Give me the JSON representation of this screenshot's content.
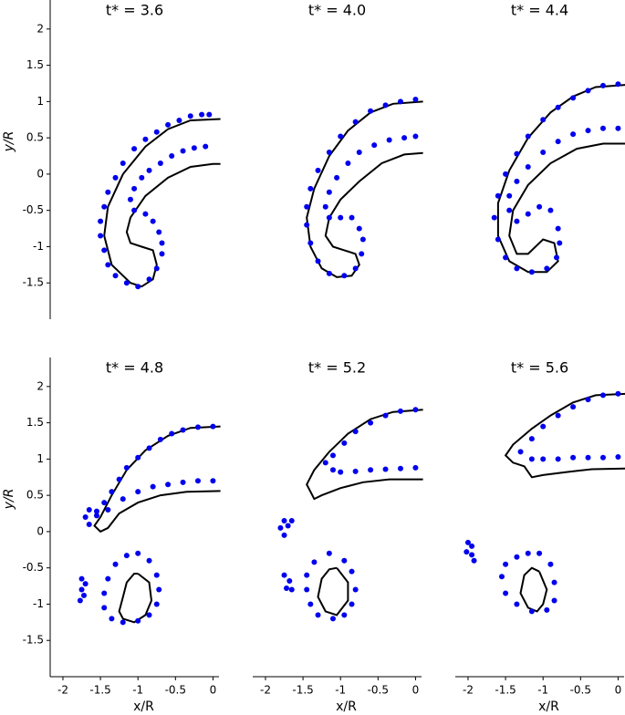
{
  "chart_data": [
    {
      "type": "scatter",
      "title": "t* = 3.6",
      "ylabel": "y/R",
      "xlim": [
        -2.17,
        0.08
      ],
      "ylim": [
        -2.0,
        2.4
      ],
      "yticks": [
        -1.5,
        -1,
        -0.5,
        0,
        0.5,
        1,
        1.5,
        2
      ],
      "series": [
        {
          "mode": "line",
          "color": "#000000",
          "x": [
            0.1,
            -0.3,
            -0.6,
            -0.9,
            -1.2,
            -1.4,
            -1.45,
            -1.35,
            -1.1,
            -0.95,
            -0.8,
            -0.75,
            -0.8,
            -0.95,
            -1.1,
            -1.15,
            -1.1,
            -0.9,
            -0.6,
            -0.3,
            0,
            0.1
          ],
          "y": [
            0.76,
            0.74,
            0.62,
            0.38,
            0.0,
            -0.45,
            -0.85,
            -1.25,
            -1.5,
            -1.55,
            -1.45,
            -1.25,
            -1.05,
            -1.0,
            -0.95,
            -0.8,
            -0.6,
            -0.3,
            -0.05,
            0.1,
            0.14,
            0.14
          ]
        },
        {
          "mode": "markers",
          "color": "#0000ee",
          "x": [
            -0.05,
            -0.15,
            -0.3,
            -0.45,
            -0.6,
            -0.75,
            -0.9,
            -1.05,
            -1.2,
            -1.3,
            -1.4,
            -1.45,
            -1.5,
            -1.5,
            -1.45,
            -1.4,
            -1.3,
            -1.15,
            -1.0,
            -0.85,
            -0.75,
            -0.68,
            -0.68,
            -0.72,
            -0.8,
            -0.9,
            -1.05,
            -1.1,
            -1.05,
            -0.95,
            -0.85,
            -0.7,
            -0.55,
            -0.4,
            -0.25,
            -0.1
          ],
          "y": [
            0.82,
            0.82,
            0.8,
            0.74,
            0.68,
            0.58,
            0.48,
            0.35,
            0.15,
            -0.05,
            -0.25,
            -0.45,
            -0.65,
            -0.85,
            -1.05,
            -1.25,
            -1.4,
            -1.5,
            -1.55,
            -1.45,
            -1.3,
            -1.1,
            -0.95,
            -0.8,
            -0.65,
            -0.55,
            -0.5,
            -0.35,
            -0.2,
            -0.05,
            0.05,
            0.15,
            0.25,
            0.32,
            0.36,
            0.38
          ]
        }
      ]
    },
    {
      "type": "scatter",
      "title": "t* = 4.0",
      "xlim": [
        -2.17,
        0.08
      ],
      "ylim": [
        -2.0,
        2.4
      ],
      "series": [
        {
          "mode": "line",
          "color": "#000000",
          "x": [
            0.1,
            -0.3,
            -0.6,
            -0.9,
            -1.15,
            -1.35,
            -1.45,
            -1.4,
            -1.25,
            -1.05,
            -0.85,
            -0.75,
            -0.8,
            -0.95,
            -1.1,
            -1.2,
            -1.15,
            -1.0,
            -0.75,
            -0.45,
            -0.15,
            0.1
          ],
          "y": [
            1.0,
            0.97,
            0.85,
            0.6,
            0.25,
            -0.2,
            -0.6,
            -1.0,
            -1.3,
            -1.42,
            -1.4,
            -1.25,
            -1.1,
            -1.05,
            -1.0,
            -0.85,
            -0.6,
            -0.35,
            -0.1,
            0.15,
            0.27,
            0.29
          ]
        },
        {
          "mode": "markers",
          "color": "#0000ee",
          "x": [
            0,
            -0.2,
            -0.4,
            -0.6,
            -0.8,
            -1.0,
            -1.15,
            -1.3,
            -1.4,
            -1.45,
            -1.45,
            -1.4,
            -1.3,
            -1.15,
            -0.95,
            -0.8,
            -0.72,
            -0.7,
            -0.75,
            -0.85,
            -1.0,
            -1.15,
            -1.2,
            -1.15,
            -1.05,
            -0.9,
            -0.75,
            -0.55,
            -0.35,
            -0.15,
            0
          ],
          "y": [
            1.03,
            1.0,
            0.95,
            0.87,
            0.72,
            0.52,
            0.3,
            0.05,
            -0.2,
            -0.45,
            -0.7,
            -0.95,
            -1.2,
            -1.37,
            -1.4,
            -1.3,
            -1.1,
            -0.9,
            -0.75,
            -0.6,
            -0.6,
            -0.6,
            -0.45,
            -0.25,
            -0.05,
            0.15,
            0.3,
            0.4,
            0.47,
            0.5,
            0.52
          ]
        }
      ]
    },
    {
      "type": "scatter",
      "title": "t* = 4.4",
      "xlim": [
        -2.17,
        0.08
      ],
      "ylim": [
        -2.0,
        2.4
      ],
      "series": [
        {
          "mode": "line",
          "color": "#000000",
          "x": [
            0.1,
            -0.3,
            -0.6,
            -0.9,
            -1.2,
            -1.45,
            -1.6,
            -1.6,
            -1.45,
            -1.2,
            -0.95,
            -0.8,
            -0.85,
            -1.0,
            -1.2,
            -1.35,
            -1.45,
            -1.4,
            -1.2,
            -0.9,
            -0.55,
            -0.2,
            0.1
          ],
          "y": [
            1.23,
            1.2,
            1.07,
            0.85,
            0.5,
            0.05,
            -0.4,
            -0.85,
            -1.2,
            -1.35,
            -1.35,
            -1.2,
            -0.95,
            -0.9,
            -1.1,
            -1.1,
            -0.85,
            -0.5,
            -0.15,
            0.15,
            0.35,
            0.42,
            0.42
          ]
        },
        {
          "mode": "markers",
          "color": "#0000ee",
          "x": [
            0,
            -0.2,
            -0.4,
            -0.6,
            -0.8,
            -1.0,
            -1.2,
            -1.35,
            -1.5,
            -1.6,
            -1.65,
            -1.6,
            -1.5,
            -1.35,
            -1.15,
            -0.95,
            -0.82,
            -0.78,
            -0.8,
            -0.9,
            -1.05,
            -1.2,
            -1.35,
            -1.45,
            -1.45,
            -1.35,
            -1.2,
            -1.0,
            -0.8,
            -0.6,
            -0.4,
            -0.2,
            0
          ],
          "y": [
            1.24,
            1.22,
            1.15,
            1.05,
            0.92,
            0.75,
            0.52,
            0.28,
            0.0,
            -0.3,
            -0.6,
            -0.9,
            -1.15,
            -1.3,
            -1.35,
            -1.3,
            -1.15,
            -0.95,
            -0.75,
            -0.5,
            -0.45,
            -0.55,
            -0.65,
            -0.5,
            -0.3,
            -0.1,
            0.1,
            0.3,
            0.45,
            0.55,
            0.6,
            0.63,
            0.63
          ]
        }
      ]
    },
    {
      "type": "scatter",
      "title": "t* = 4.8",
      "ylabel": "y/R",
      "xlabel": "x/R",
      "xlim": [
        -2.17,
        0.08
      ],
      "ylim": [
        -2.0,
        2.4
      ],
      "yticks": [
        -1.5,
        -1,
        -0.5,
        0,
        0.5,
        1,
        1.5,
        2
      ],
      "xticks": [
        -2,
        -1.5,
        -1,
        -0.5,
        0
      ],
      "series": [
        {
          "mode": "line",
          "color": "#000000",
          "x": [
            0.1,
            -0.3,
            -0.6,
            -0.9,
            -1.15,
            -1.35,
            -1.5,
            -1.58,
            -1.5,
            -1.4,
            -1.25,
            -1.0,
            -0.7,
            -0.35,
            0.1,
            null,
            -1.0,
            -0.85,
            -0.82,
            -0.9,
            -1.05,
            -1.2,
            -1.25,
            -1.2,
            -1.15,
            -1.05,
            -1.0
          ],
          "y": [
            1.45,
            1.43,
            1.32,
            1.12,
            0.85,
            0.5,
            0.2,
            0.08,
            0.0,
            0.05,
            0.25,
            0.4,
            0.5,
            0.55,
            0.56,
            null,
            -0.58,
            -0.7,
            -0.95,
            -1.15,
            -1.25,
            -1.2,
            -1.1,
            -0.9,
            -0.7,
            -0.58,
            -0.58
          ]
        },
        {
          "mode": "markers",
          "color": "#0000ee",
          "x": [
            0,
            -0.2,
            -0.4,
            -0.55,
            -0.7,
            -0.85,
            -1.0,
            -1.15,
            -1.25,
            -1.35,
            -1.45,
            -1.55,
            -1.65,
            -1.7,
            -1.65,
            -1.55,
            -1.4,
            -1.2,
            -1.0,
            -0.8,
            -0.6,
            -0.4,
            -0.2,
            0,
            -1.0,
            -0.85,
            -0.75,
            -0.72,
            -0.75,
            -0.85,
            -1.0,
            -1.2,
            -1.35,
            -1.45,
            -1.45,
            -1.4,
            -1.3,
            -1.15,
            -1.75,
            -1.7,
            -1.75,
            -1.72,
            -1.77
          ],
          "y": [
            1.45,
            1.44,
            1.4,
            1.35,
            1.27,
            1.15,
            1.02,
            0.88,
            0.72,
            0.55,
            0.4,
            0.28,
            0.3,
            0.2,
            0.1,
            0.22,
            0.3,
            0.45,
            0.55,
            0.62,
            0.65,
            0.68,
            0.7,
            0.7,
            -0.3,
            -0.4,
            -0.6,
            -0.8,
            -1.0,
            -1.15,
            -1.23,
            -1.25,
            -1.2,
            -1.05,
            -0.85,
            -0.65,
            -0.45,
            -0.33,
            -0.65,
            -0.72,
            -0.8,
            -0.88,
            -0.95
          ]
        }
      ]
    },
    {
      "type": "scatter",
      "title": "t* = 5.2",
      "xlabel": "x/R",
      "xlim": [
        -2.17,
        0.08
      ],
      "ylim": [
        -2.0,
        2.4
      ],
      "xticks": [
        -2,
        -1.5,
        -1,
        -0.5,
        0
      ],
      "series": [
        {
          "mode": "line",
          "color": "#000000",
          "x": [
            0.1,
            -0.3,
            -0.6,
            -0.9,
            -1.15,
            -1.35,
            -1.45,
            -1.35,
            -1.25,
            -1.0,
            -0.7,
            -0.35,
            0.1,
            null,
            -1.05,
            -0.9,
            -0.9,
            -1.05,
            -1.2,
            -1.3,
            -1.25,
            -1.15,
            -1.05
          ],
          "y": [
            1.68,
            1.65,
            1.55,
            1.35,
            1.1,
            0.85,
            0.65,
            0.45,
            0.5,
            0.6,
            0.68,
            0.72,
            0.72,
            null,
            -0.5,
            -0.7,
            -0.95,
            -1.15,
            -1.1,
            -0.9,
            -0.65,
            -0.52,
            -0.5
          ]
        },
        {
          "mode": "markers",
          "color": "#0000ee",
          "x": [
            0,
            -0.2,
            -0.4,
            -0.6,
            -0.8,
            -0.95,
            -1.1,
            -1.2,
            -1.1,
            -1.0,
            -0.8,
            -0.6,
            -0.4,
            -0.2,
            0,
            -1.15,
            -0.95,
            -0.85,
            -0.8,
            -0.85,
            -0.95,
            -1.1,
            -1.3,
            -1.4,
            -1.45,
            -1.45,
            -1.35,
            -1.75,
            -1.7,
            -1.8,
            -1.75,
            -1.65,
            -1.75,
            -1.68,
            -1.72,
            -1.65
          ],
          "y": [
            1.68,
            1.66,
            1.6,
            1.5,
            1.38,
            1.22,
            1.05,
            0.95,
            0.85,
            0.82,
            0.83,
            0.85,
            0.86,
            0.87,
            0.88,
            -0.3,
            -0.4,
            -0.55,
            -0.8,
            -1.0,
            -1.15,
            -1.2,
            -1.15,
            -1.0,
            -0.8,
            -0.6,
            -0.42,
            0.15,
            0.08,
            0.05,
            -0.05,
            0.15,
            -0.6,
            -0.68,
            -0.78,
            -0.8
          ]
        }
      ]
    },
    {
      "type": "scatter",
      "title": "t* = 5.6",
      "xlabel": "x/R",
      "xlim": [
        -2.17,
        0.08
      ],
      "ylim": [
        -2.0,
        2.4
      ],
      "xticks": [
        -2,
        -1.5,
        -1,
        -0.5,
        0
      ],
      "series": [
        {
          "mode": "line",
          "color": "#000000",
          "x": [
            0.1,
            -0.3,
            -0.6,
            -0.9,
            -1.15,
            -1.4,
            -1.5,
            -1.4,
            -1.25,
            -1.15,
            -1.0,
            -0.7,
            -0.35,
            0.1,
            null,
            -1.05,
            -0.95,
            -1.0,
            -1.08,
            -1.2,
            -1.3,
            -1.25,
            -1.15,
            -1.05
          ],
          "y": [
            1.9,
            1.88,
            1.78,
            1.6,
            1.42,
            1.2,
            1.05,
            0.95,
            0.9,
            0.75,
            0.78,
            0.82,
            0.86,
            0.87,
            null,
            -0.55,
            -0.8,
            -1.0,
            -1.1,
            -1.05,
            -0.85,
            -0.6,
            -0.5,
            -0.55
          ]
        },
        {
          "mode": "markers",
          "color": "#0000ee",
          "x": [
            0,
            -0.2,
            -0.4,
            -0.6,
            -0.8,
            -1.0,
            -1.15,
            -1.3,
            -1.15,
            -1.0,
            -0.8,
            -0.6,
            -0.4,
            -0.2,
            0,
            -1.05,
            -0.9,
            -0.85,
            -0.85,
            -0.95,
            -1.15,
            -1.35,
            -1.5,
            -1.55,
            -1.5,
            -1.35,
            -1.2,
            -2.0,
            -1.95,
            -2.02,
            -1.95,
            -1.92
          ],
          "y": [
            1.9,
            1.88,
            1.82,
            1.72,
            1.6,
            1.45,
            1.28,
            1.1,
            1.0,
            1.0,
            1.0,
            1.02,
            1.02,
            1.02,
            1.03,
            -0.3,
            -0.45,
            -0.7,
            -0.95,
            -1.08,
            -1.1,
            -1.0,
            -0.85,
            -0.62,
            -0.45,
            -0.35,
            -0.3,
            -0.15,
            -0.2,
            -0.28,
            -0.32,
            -0.4
          ]
        }
      ]
    }
  ]
}
